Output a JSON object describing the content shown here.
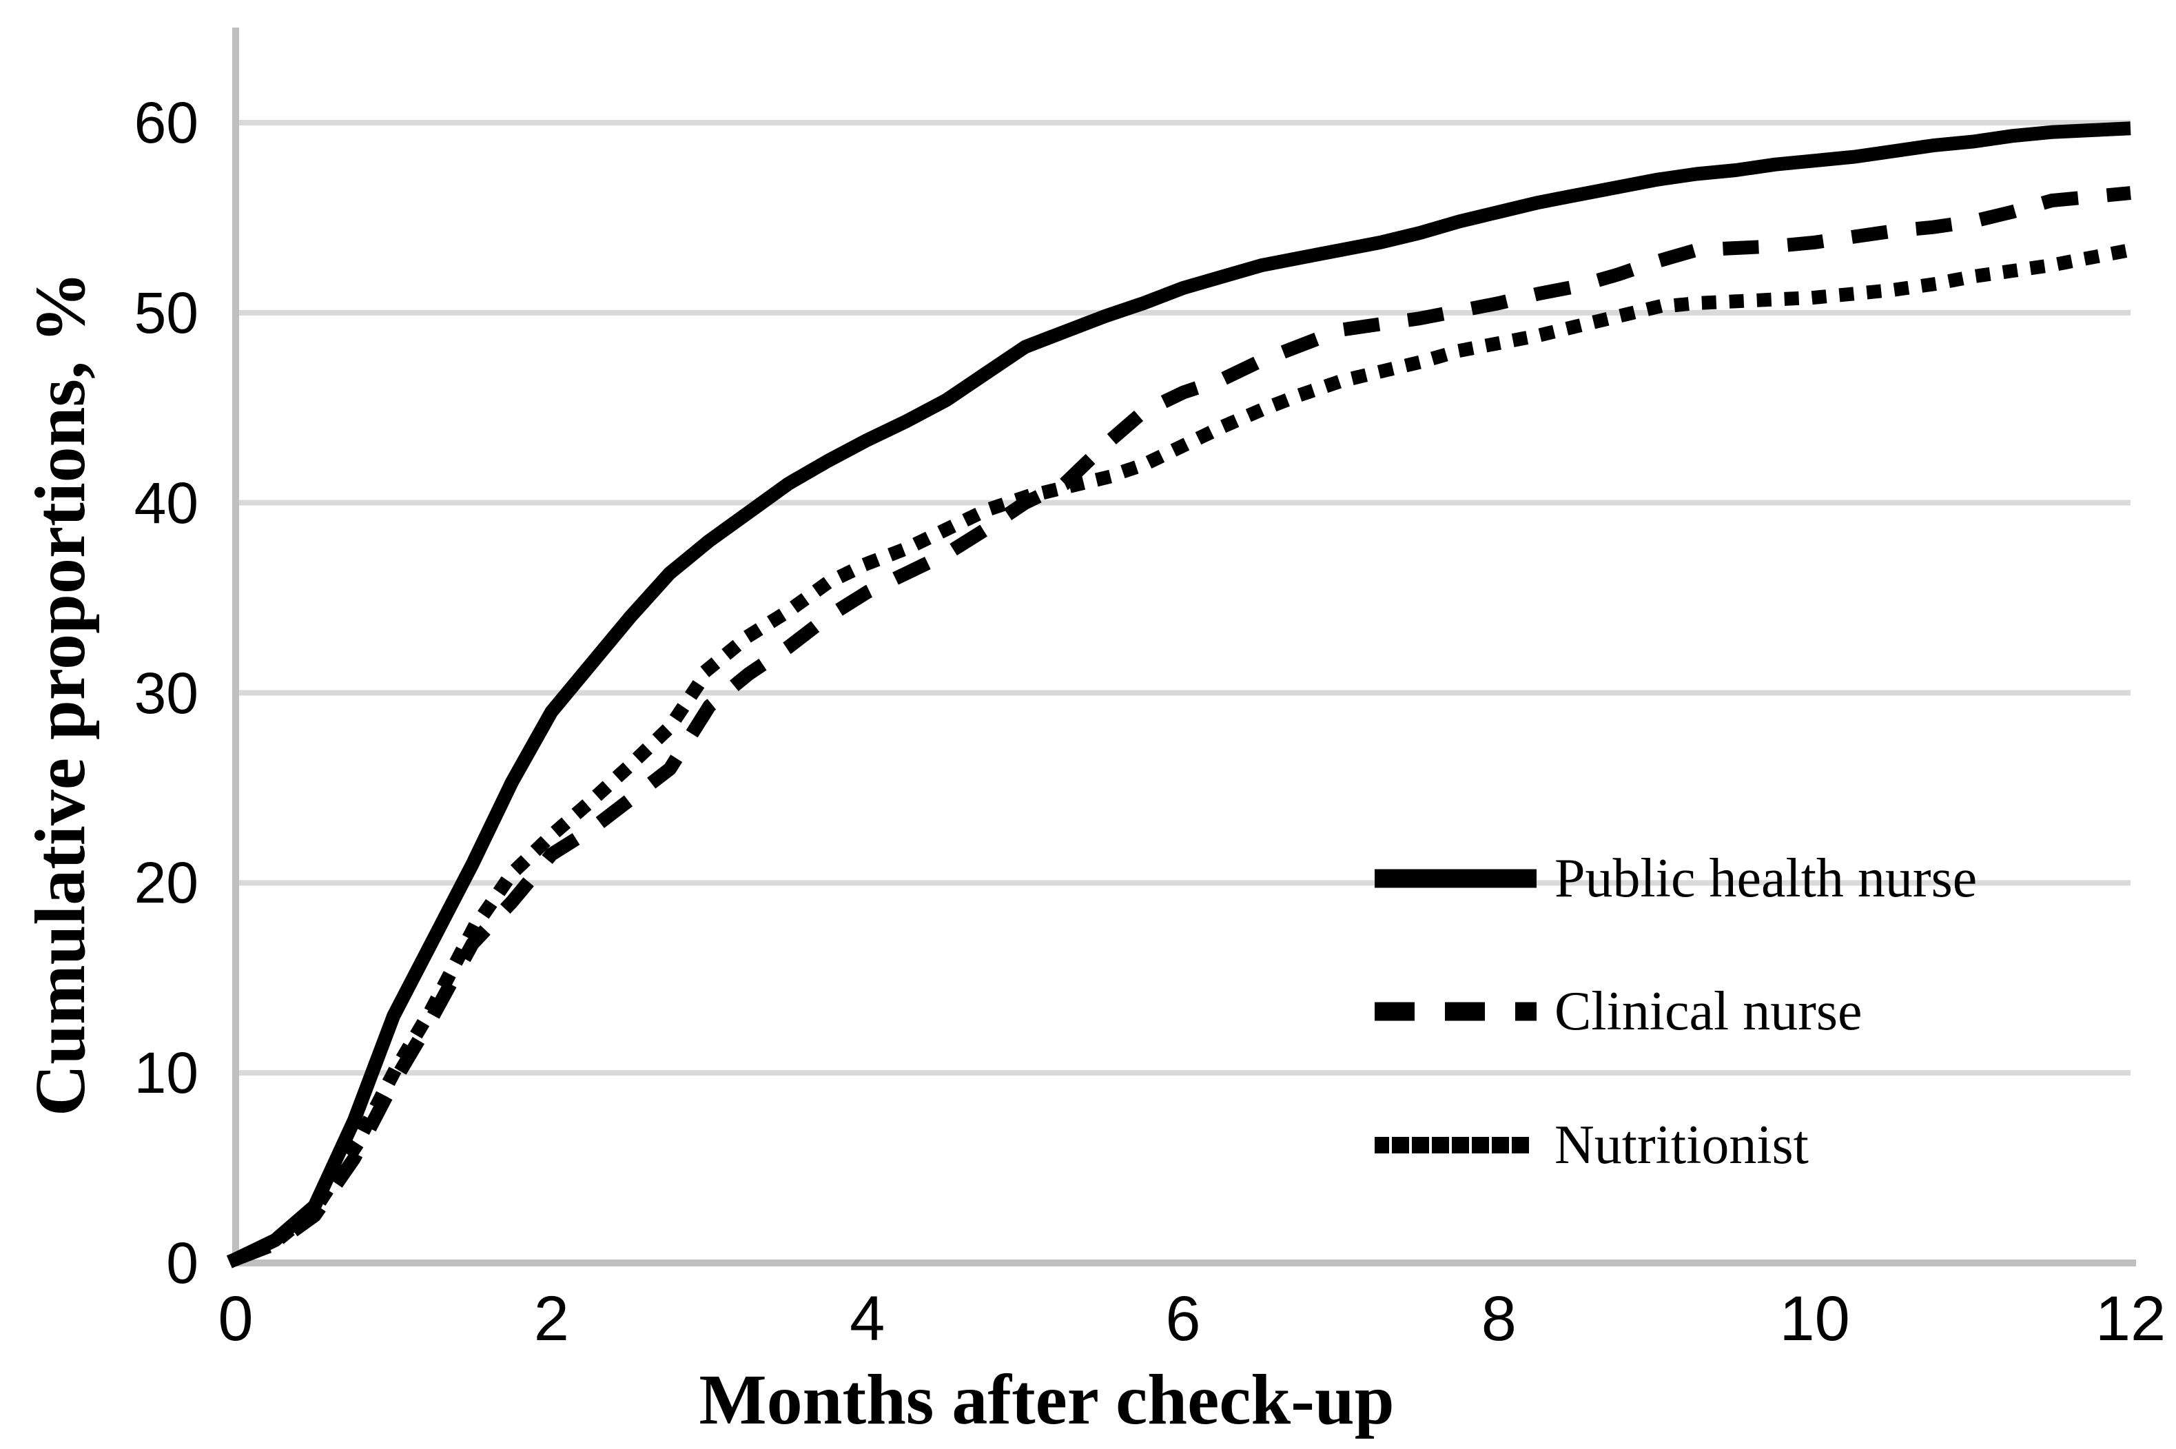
{
  "chart_data": {
    "type": "line",
    "title": "",
    "xlabel": "Months after check-up",
    "ylabel": "Cumulative proportions, %",
    "xlim": [
      0,
      12
    ],
    "ylim": [
      0,
      60
    ],
    "xticks": [
      0,
      2,
      4,
      6,
      8,
      10,
      12
    ],
    "yticks": [
      0,
      10,
      20,
      30,
      40,
      50,
      60
    ],
    "grid": "horizontal",
    "legend_position": "inside-right",
    "colors": {
      "series": "#000000",
      "gridline": "#d9d9d9",
      "axis_line": "#bfbfbf",
      "text": "#000000",
      "background": "#ffffff"
    },
    "x": [
      0,
      0.25,
      0.5,
      0.75,
      1,
      1.25,
      1.5,
      1.75,
      2,
      2.25,
      2.5,
      2.75,
      3,
      3.25,
      3.5,
      3.75,
      4,
      4.25,
      4.5,
      4.75,
      5,
      5.25,
      5.5,
      5.75,
      6,
      6.25,
      6.5,
      6.75,
      7,
      7.25,
      7.5,
      7.75,
      8,
      8.25,
      8.5,
      8.75,
      9,
      9.25,
      9.5,
      9.75,
      10,
      10.25,
      10.5,
      10.75,
      11,
      11.25,
      11.5,
      11.75,
      12
    ],
    "series": [
      {
        "name": "Public health nurse",
        "line_style": "solid",
        "values": [
          0.2,
          1.2,
          3.0,
          7.5,
          13.0,
          17.0,
          21.0,
          25.3,
          29.0,
          31.5,
          34.0,
          36.3,
          38.0,
          39.5,
          41.0,
          42.2,
          43.3,
          44.3,
          45.4,
          46.8,
          48.2,
          49.0,
          49.8,
          50.5,
          51.3,
          51.9,
          52.5,
          52.9,
          53.3,
          53.7,
          54.2,
          54.8,
          55.3,
          55.8,
          56.2,
          56.6,
          57.0,
          57.3,
          57.5,
          57.8,
          58.0,
          58.2,
          58.5,
          58.8,
          59.0,
          59.3,
          59.5,
          59.6,
          59.7
        ]
      },
      {
        "name": "Clinical nurse",
        "line_style": "dashed",
        "values": [
          0.2,
          1.0,
          2.5,
          5.5,
          9.5,
          13.0,
          16.8,
          19.0,
          21.5,
          22.8,
          24.4,
          26.0,
          29.3,
          31.0,
          32.4,
          34.0,
          35.3,
          36.3,
          37.3,
          38.6,
          40.0,
          41.0,
          43.0,
          44.8,
          45.8,
          46.5,
          47.5,
          48.3,
          49.1,
          49.4,
          49.7,
          50.1,
          50.5,
          51.0,
          51.4,
          52.0,
          52.7,
          53.3,
          53.4,
          53.5,
          53.7,
          54.0,
          54.3,
          54.5,
          54.8,
          55.3,
          55.9,
          56.1,
          56.3
        ]
      },
      {
        "name": "Nutritionist",
        "line_style": "dotted",
        "values": [
          0.2,
          1.1,
          2.8,
          6.0,
          10.0,
          13.5,
          17.5,
          20.5,
          22.5,
          24.3,
          26.2,
          28.2,
          31.3,
          33.0,
          34.3,
          35.8,
          36.8,
          37.6,
          38.6,
          39.6,
          40.3,
          40.8,
          41.3,
          42.0,
          43.0,
          44.0,
          44.9,
          45.7,
          46.4,
          46.9,
          47.4,
          48.0,
          48.4,
          48.8,
          49.3,
          49.8,
          50.3,
          50.5,
          50.6,
          50.7,
          50.8,
          51.0,
          51.2,
          51.5,
          51.9,
          52.2,
          52.5,
          52.9,
          53.3
        ]
      }
    ]
  }
}
